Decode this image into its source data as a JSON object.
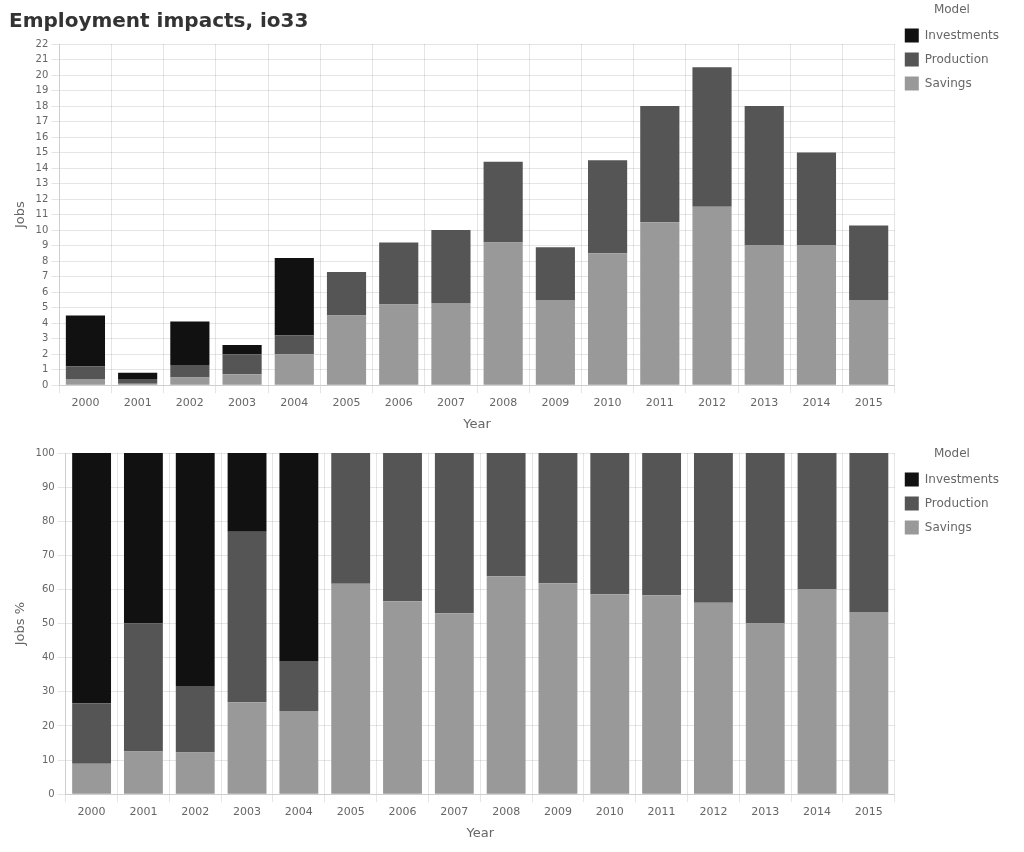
{
  "chart_data": [
    {
      "type": "bar",
      "title": "Employment impacts, io33",
      "stacked": true,
      "categories": [
        2000,
        2001,
        2002,
        2003,
        2004,
        2005,
        2006,
        2007,
        2008,
        2009,
        2010,
        2011,
        2012,
        2013,
        2014,
        2015
      ],
      "series": [
        {
          "name": "Savings",
          "color": "#999999",
          "values": [
            0.4,
            0.1,
            0.5,
            0.7,
            2.0,
            4.5,
            5.2,
            5.3,
            9.2,
            5.5,
            8.5,
            10.5,
            11.5,
            9.0,
            9.0,
            5.5
          ]
        },
        {
          "name": "Production",
          "color": "#555555",
          "values": [
            0.8,
            0.3,
            0.8,
            1.3,
            1.2,
            2.8,
            4.0,
            4.7,
            5.2,
            3.4,
            6.0,
            7.5,
            9.0,
            9.0,
            6.0,
            4.8
          ]
        },
        {
          "name": "Investments",
          "color": "#111111",
          "values": [
            3.3,
            0.4,
            2.8,
            0.6,
            5.0,
            0.0,
            0.0,
            0.0,
            0.0,
            0.0,
            0.0,
            0.0,
            0.0,
            0.0,
            0.0,
            0.0
          ]
        }
      ],
      "xlabel": "Year",
      "ylabel": "Jobs",
      "ylim": [
        0,
        22
      ],
      "yticks": [
        0,
        1,
        2,
        3,
        4,
        5,
        6,
        7,
        8,
        9,
        10,
        11,
        12,
        13,
        14,
        15,
        16,
        17,
        18,
        19,
        20,
        21,
        22
      ],
      "grid": true,
      "legend": "right",
      "legend_title": "Model"
    },
    {
      "type": "bar",
      "stacked": true,
      "categories": [
        2000,
        2001,
        2002,
        2003,
        2004,
        2005,
        2006,
        2007,
        2008,
        2009,
        2010,
        2011,
        2012,
        2013,
        2014,
        2015
      ],
      "series": [
        {
          "name": "Savings",
          "color": "#999999",
          "values": [
            8.888889,
            12.5,
            12.195122,
            26.923077,
            24.390244,
            61.643836,
            56.521739,
            53.0,
            63.888889,
            61.797753,
            58.62069,
            58.333333,
            56.097561,
            50.0,
            60.0,
            53.398058
          ]
        },
        {
          "name": "Production",
          "color": "#555555",
          "values": [
            17.777778,
            37.5,
            19.512195,
            50.0,
            14.634146,
            38.356164,
            43.478261,
            47.0,
            36.111111,
            38.202247,
            41.37931,
            41.666667,
            43.902439,
            50.0,
            40.0,
            46.601942
          ]
        },
        {
          "name": "Investments",
          "color": "#111111",
          "values": [
            73.333333,
            50.0,
            68.292683,
            23.076923,
            60.97561,
            0.0,
            0.0,
            0.0,
            0.0,
            0.0,
            0.0,
            0.0,
            0.0,
            0.0,
            0.0,
            0.0
          ]
        }
      ],
      "xlabel": "Year",
      "ylabel": "Jobs %",
      "ylim": [
        0,
        100
      ],
      "yticks": [
        0,
        10,
        20,
        30,
        40,
        50,
        60,
        70,
        80,
        90,
        100
      ],
      "grid": true,
      "legend": "right",
      "legend_title": "Model"
    }
  ]
}
